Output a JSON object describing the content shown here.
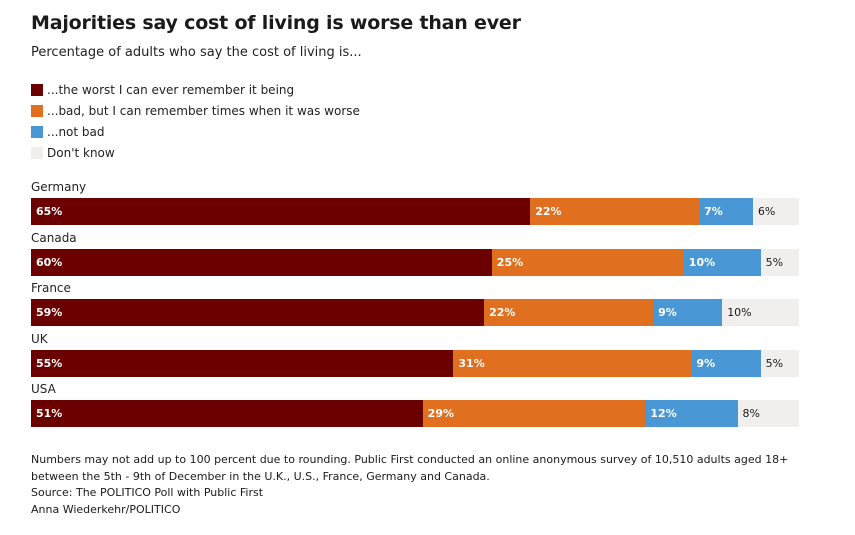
{
  "header": {
    "title": "Majorities say cost of living is worse than ever",
    "subtitle": "Percentage of adults who say the cost of living is..."
  },
  "legend": [
    {
      "label": "...the worst I can ever remember it being",
      "color": "#6b0000"
    },
    {
      "label": "...bad, but I can remember times when it was worse",
      "color": "#e07020"
    },
    {
      "label": "...not bad",
      "color": "#4a97d6"
    },
    {
      "label": "Don't know",
      "color": "#f1eeee"
    }
  ],
  "chart_data": {
    "type": "bar",
    "orientation": "horizontal",
    "stacked": true,
    "title": "Majorities say cost of living is worse than ever",
    "subtitle": "Percentage of adults who say the cost of living is...",
    "xlabel": "",
    "ylabel": "",
    "xlim": [
      0,
      100
    ],
    "grid": false,
    "legend_position": "top-left",
    "categories": [
      "Germany",
      "Canada",
      "France",
      "UK",
      "USA"
    ],
    "series": [
      {
        "name": "...the worst I can ever remember it being",
        "color": "#6b0000",
        "label_color": "#ffffff",
        "values": [
          65,
          60,
          59,
          55,
          51
        ]
      },
      {
        "name": "...bad, but I can remember times when it was worse",
        "color": "#e07020",
        "label_color": "#ffffff",
        "values": [
          22,
          25,
          22,
          31,
          29
        ]
      },
      {
        "name": "...not bad",
        "color": "#4a97d6",
        "label_color": "#ffffff",
        "values": [
          7,
          10,
          9,
          9,
          12
        ]
      },
      {
        "name": "Don't know",
        "color": "#f1eeee",
        "label_color": "#1a1a1a",
        "values": [
          6,
          5,
          10,
          5,
          8
        ]
      }
    ]
  },
  "notes": {
    "methodology": "Numbers may not add up to 100 percent due to rounding. Public First conducted an online anonymous survey of 10,510 adults aged 18+ between the 5th - 9th of December in the U.K., U.S., France, Germany and Canada.",
    "source": "Source: The POLITICO Poll with Public First",
    "credit": "Anna Wiederkehr/POLITICO"
  }
}
